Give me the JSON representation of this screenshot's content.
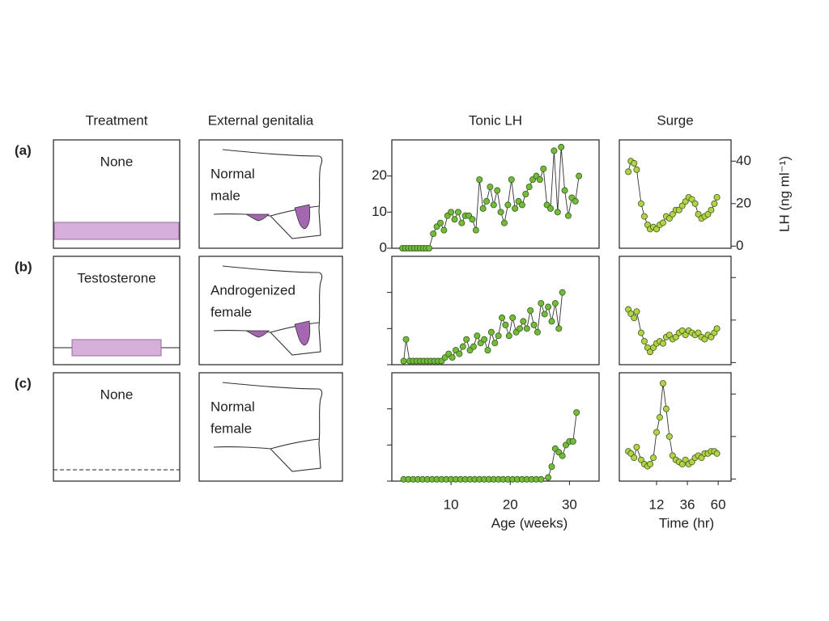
{
  "headers": {
    "treatment": "Treatment",
    "genitalia": "External genitalia"
  },
  "rows": [
    {
      "label": "(a)",
      "treatment": "None",
      "genitalia": [
        "Normal",
        "male"
      ]
    },
    {
      "label": "(b)",
      "treatment": "Testosterone",
      "genitalia": [
        "Androgenized",
        "female"
      ]
    },
    {
      "label": "(c)",
      "treatment": "None",
      "genitalia": [
        "Normal",
        "female"
      ]
    }
  ],
  "chart_data": [
    {
      "type": "line",
      "title": "Tonic LH",
      "xlim": [
        0,
        35
      ],
      "ylim": [
        0,
        30
      ],
      "yticks": [
        0,
        10,
        20
      ],
      "ytick_labels": true,
      "yaxis_side": "left",
      "x": [
        1.8,
        2.3,
        2.8,
        3.3,
        3.8,
        4.3,
        4.8,
        5.3,
        5.8,
        6.3,
        7,
        7.6,
        8.2,
        8.8,
        9.4,
        10,
        10.6,
        11.2,
        11.8,
        12.4,
        13,
        13.6,
        14.2,
        14.8,
        15.4,
        16,
        16.6,
        17.2,
        17.8,
        18.4,
        19,
        19.6,
        20.2,
        20.8,
        21.4,
        22,
        22.6,
        23.2,
        23.8,
        24.4,
        25,
        25.6,
        26.2,
        26.8,
        27.4,
        28,
        28.6,
        29.2,
        29.8,
        30.4,
        31,
        31.6
      ],
      "series": [
        {
          "color": "#72bb3c",
          "values": [
            0,
            0,
            0,
            0,
            0,
            0,
            0,
            0,
            0,
            0,
            4,
            6,
            7,
            5,
            9,
            10,
            8,
            10,
            7,
            9,
            9,
            8,
            5,
            19,
            11,
            13,
            17,
            12,
            16,
            10,
            7,
            12,
            19,
            11,
            13,
            12,
            15,
            17,
            19,
            20,
            19,
            22,
            12,
            11,
            27,
            10,
            28,
            16,
            9,
            14,
            13,
            20
          ]
        }
      ]
    },
    {
      "type": "line",
      "title": "Surge",
      "ylabel": "LH (ng ml⁻¹)",
      "xlim": [
        -17,
        70
      ],
      "ylim": [
        -1,
        50
      ],
      "yticks": [
        0,
        20,
        40
      ],
      "ytick_labels": true,
      "yaxis_side": "right",
      "x": [
        -10,
        -8,
        -5.5,
        -3.5,
        0,
        2.5,
        5,
        7,
        9.5,
        12,
        14.5,
        17,
        19.5,
        22,
        24.5,
        27,
        29.5,
        32,
        34.5,
        37,
        39.5,
        42,
        44.5,
        47,
        49.5,
        52,
        54.5,
        57,
        59
      ],
      "series": [
        {
          "color": "#b5d147",
          "values": [
            35,
            40,
            39,
            36,
            20,
            14,
            10,
            8,
            9,
            8,
            10,
            11,
            14,
            13,
            15,
            17,
            17,
            19,
            21,
            23,
            22,
            20,
            15,
            13,
            14,
            15,
            17,
            20,
            23
          ]
        }
      ]
    },
    {
      "type": "line",
      "xlim": [
        0,
        35
      ],
      "ylim": [
        0,
        30
      ],
      "yticks": [
        0,
        10,
        20
      ],
      "ytick_labels": false,
      "yaxis_side": "left",
      "x": [
        2,
        2.4,
        3,
        3.6,
        4.2,
        4.8,
        5.4,
        6,
        6.6,
        7.2,
        7.8,
        8.4,
        9,
        9.6,
        10.2,
        10.8,
        11.4,
        12,
        12.6,
        13.2,
        13.8,
        14.4,
        15,
        15.6,
        16.2,
        16.8,
        17.4,
        18,
        18.6,
        19.2,
        19.8,
        20.4,
        21,
        21.6,
        22.2,
        22.8,
        23.4,
        24,
        24.6,
        25.2,
        25.8,
        26.4,
        27,
        27.6,
        28.2,
        28.8
      ],
      "series": [
        {
          "color": "#72bb3c",
          "values": [
            1,
            7,
            1,
            1,
            1,
            1,
            1,
            1,
            1,
            1,
            1,
            1,
            2,
            3,
            2,
            4,
            3,
            5,
            7,
            4,
            5,
            8,
            6,
            7,
            4,
            9,
            6,
            8,
            13,
            11,
            8,
            13,
            9,
            10,
            12,
            10,
            15,
            11,
            9,
            17,
            14,
            16,
            12,
            17,
            10,
            20
          ]
        }
      ]
    },
    {
      "type": "line",
      "xlim": [
        -17,
        70
      ],
      "ylim": [
        -1,
        50
      ],
      "yticks": [
        0,
        20,
        40
      ],
      "ytick_labels": false,
      "yaxis_side": "right",
      "x": [
        -10,
        -8,
        -5.5,
        -3.5,
        0,
        2.5,
        5,
        7,
        9.5,
        12,
        14.5,
        17,
        19.5,
        22,
        24.5,
        27,
        29.5,
        32,
        34.5,
        37,
        39.5,
        42,
        44.5,
        47,
        49.5,
        52,
        54.5,
        57,
        59
      ],
      "series": [
        {
          "color": "#b5d147",
          "values": [
            25,
            23,
            21,
            24,
            14,
            10,
            7,
            5,
            7,
            9,
            10,
            9,
            12,
            13,
            11,
            12,
            14,
            15,
            13,
            15,
            14,
            13,
            14,
            12,
            11,
            13,
            12,
            14,
            16
          ]
        }
      ]
    },
    {
      "type": "line",
      "xlabel": "Age (weeks)",
      "xlim": [
        0,
        35
      ],
      "ylim": [
        0,
        30
      ],
      "xticks": [
        10,
        20,
        30
      ],
      "yticks": [
        0,
        10,
        20
      ],
      "ytick_labels": false,
      "yaxis_side": "left",
      "x": [
        2,
        2.8,
        3.6,
        4.4,
        5.2,
        6,
        6.8,
        7.6,
        8.4,
        9.2,
        10,
        10.8,
        11.6,
        12.4,
        13.2,
        14,
        14.8,
        15.6,
        16.4,
        17.2,
        18,
        18.8,
        19.6,
        20.4,
        21.2,
        22,
        22.8,
        23.6,
        24.4,
        25.2,
        26.4,
        27,
        27.6,
        28.2,
        28.8,
        29.4,
        30,
        30.6,
        31.2
      ],
      "series": [
        {
          "color": "#72bb3c",
          "values": [
            0.5,
            0.5,
            0.5,
            0.5,
            0.5,
            0.5,
            0.5,
            0.5,
            0.5,
            0.5,
            0.5,
            0.5,
            0.5,
            0.5,
            0.5,
            0.5,
            0.5,
            0.5,
            0.5,
            0.5,
            0.5,
            0.5,
            0.5,
            0.5,
            0.5,
            0.5,
            0.5,
            0.5,
            0.5,
            0.5,
            1,
            4,
            9,
            8,
            7,
            10,
            11,
            11,
            19
          ]
        }
      ]
    },
    {
      "type": "line",
      "xlabel": "Time (hr)",
      "xlim": [
        -17,
        70
      ],
      "ylim": [
        -1,
        50
      ],
      "xticks": [
        12,
        36,
        60
      ],
      "yticks": [
        0,
        20,
        40
      ],
      "ytick_labels": false,
      "yaxis_side": "right",
      "x": [
        -10,
        -8,
        -5.5,
        -3.5,
        0,
        2.5,
        5,
        7,
        9.5,
        12,
        14.5,
        17,
        19.5,
        22,
        24.5,
        27,
        29.5,
        32,
        34.5,
        37,
        39.5,
        42,
        44.5,
        47,
        49.5,
        52,
        54.5,
        57,
        59
      ],
      "series": [
        {
          "color": "#b5d147",
          "values": [
            13,
            12,
            10,
            15,
            9,
            7,
            6,
            7,
            10,
            22,
            29,
            45,
            33,
            20,
            11,
            9,
            8,
            7,
            9,
            7,
            8,
            10,
            11,
            10,
            12,
            12,
            13,
            13,
            12
          ]
        }
      ]
    }
  ]
}
